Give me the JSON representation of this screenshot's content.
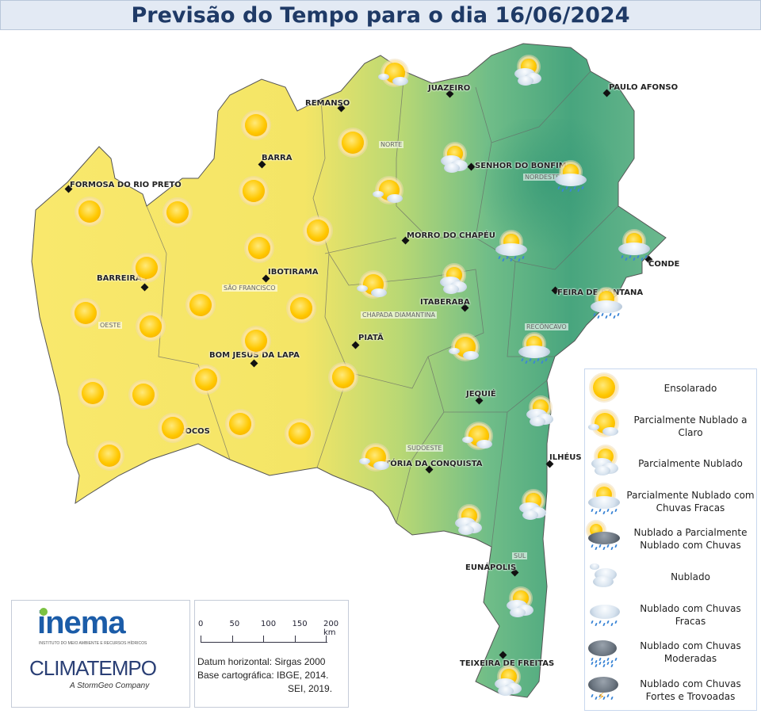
{
  "title": "Previsão do Tempo para o dia 16/06/2024",
  "cities": [
    "REMANSO",
    "JUAZEIRO",
    "PAULO AFONSO",
    "BARRA",
    "SENHOR DO BONFIM",
    "FORMOSA DO RIO PRETO",
    "MORRO DO CHAPÉU",
    "CONDE",
    "BARREIRAS",
    "IBOTIRAMA",
    "FEIRA DE SANTANA",
    "ITABERABA",
    "PIATÃ",
    "BOM JESUS DA LAPA",
    "JEQUIÉ",
    "COCOS",
    "VITÓRIA DA CONQUISTA",
    "ILHÉUS",
    "EUNÁPOLIS",
    "TEIXEIRA DE FREITAS"
  ],
  "regions": [
    "NORTE",
    "NORDESTE",
    "SÃO FRANCISCO",
    "OESTE",
    "CHAPADA DIAMANTINA",
    "RECÔNCAVO",
    "SUDOESTE",
    "SUL"
  ],
  "forecast_icons": [
    "sunny",
    "sunny",
    "sunny",
    "sunny",
    "sunny",
    "sunny",
    "sunny",
    "sunny",
    "sunny",
    "sunny",
    "sunny",
    "sunny",
    "sunny",
    "sunny",
    "sunny",
    "sunny",
    "sunny",
    "sunny",
    "sunny",
    "sunny",
    "sunny",
    "partly-cloudy-clear",
    "partly-cloudy-clear",
    "partly-cloudy-clear",
    "partly-cloudy-clear",
    "partly-cloudy-clear",
    "partly-cloudy-clear",
    "partly-cloudy",
    "partly-cloudy",
    "partly-cloudy",
    "partly-cloudy",
    "partly-cloudy",
    "partly-cloudy",
    "partly-cloudy",
    "partly-cloudy",
    "partly-cloudy-light-rain",
    "partly-cloudy-light-rain",
    "partly-cloudy-light-rain",
    "partly-cloudy-light-rain",
    "partly-cloudy-light-rain"
  ],
  "legend": [
    {
      "type": "sunny",
      "label": "Ensolarado"
    },
    {
      "type": "partly-cloudy-clear",
      "label": "Parcialmente Nublado a Claro"
    },
    {
      "type": "partly-cloudy",
      "label": "Parcialmente Nublado"
    },
    {
      "type": "partly-cloudy-light-rain",
      "label": "Parcialmente Nublado com Chuvas Fracas"
    },
    {
      "type": "cloudy-partly-rain",
      "label": "Nublado a Parcialmente Nublado com Chuvas"
    },
    {
      "type": "cloudy",
      "label": "Nublado"
    },
    {
      "type": "cloudy-light-rain",
      "label": "Nublado com Chuvas Fracas"
    },
    {
      "type": "cloudy-moderate-rain",
      "label": "Nublado com Chuvas Moderadas"
    },
    {
      "type": "storm",
      "label": "Nublado com Chuvas Fortes e Trovoadas"
    }
  ],
  "logos": {
    "inema": "inema",
    "inema_sub": "INSTITUTO DO MEIO AMBIENTE E RECURSOS HÍDRICOS",
    "climatempo": "CLIMATEMPO",
    "climatempo_sub": "A StormGeo Company"
  },
  "scale": {
    "ticks": [
      "0",
      "50",
      "100",
      "150",
      "200 km"
    ],
    "datum": "Datum horizontal: Sirgas 2000",
    "base": "Base cartográfica: IBGE, 2014.",
    "sei": "SEI, 2019."
  },
  "colors": {
    "west": "#f9e86c",
    "east": "#3f9f7b",
    "title": "#1f3a66"
  }
}
